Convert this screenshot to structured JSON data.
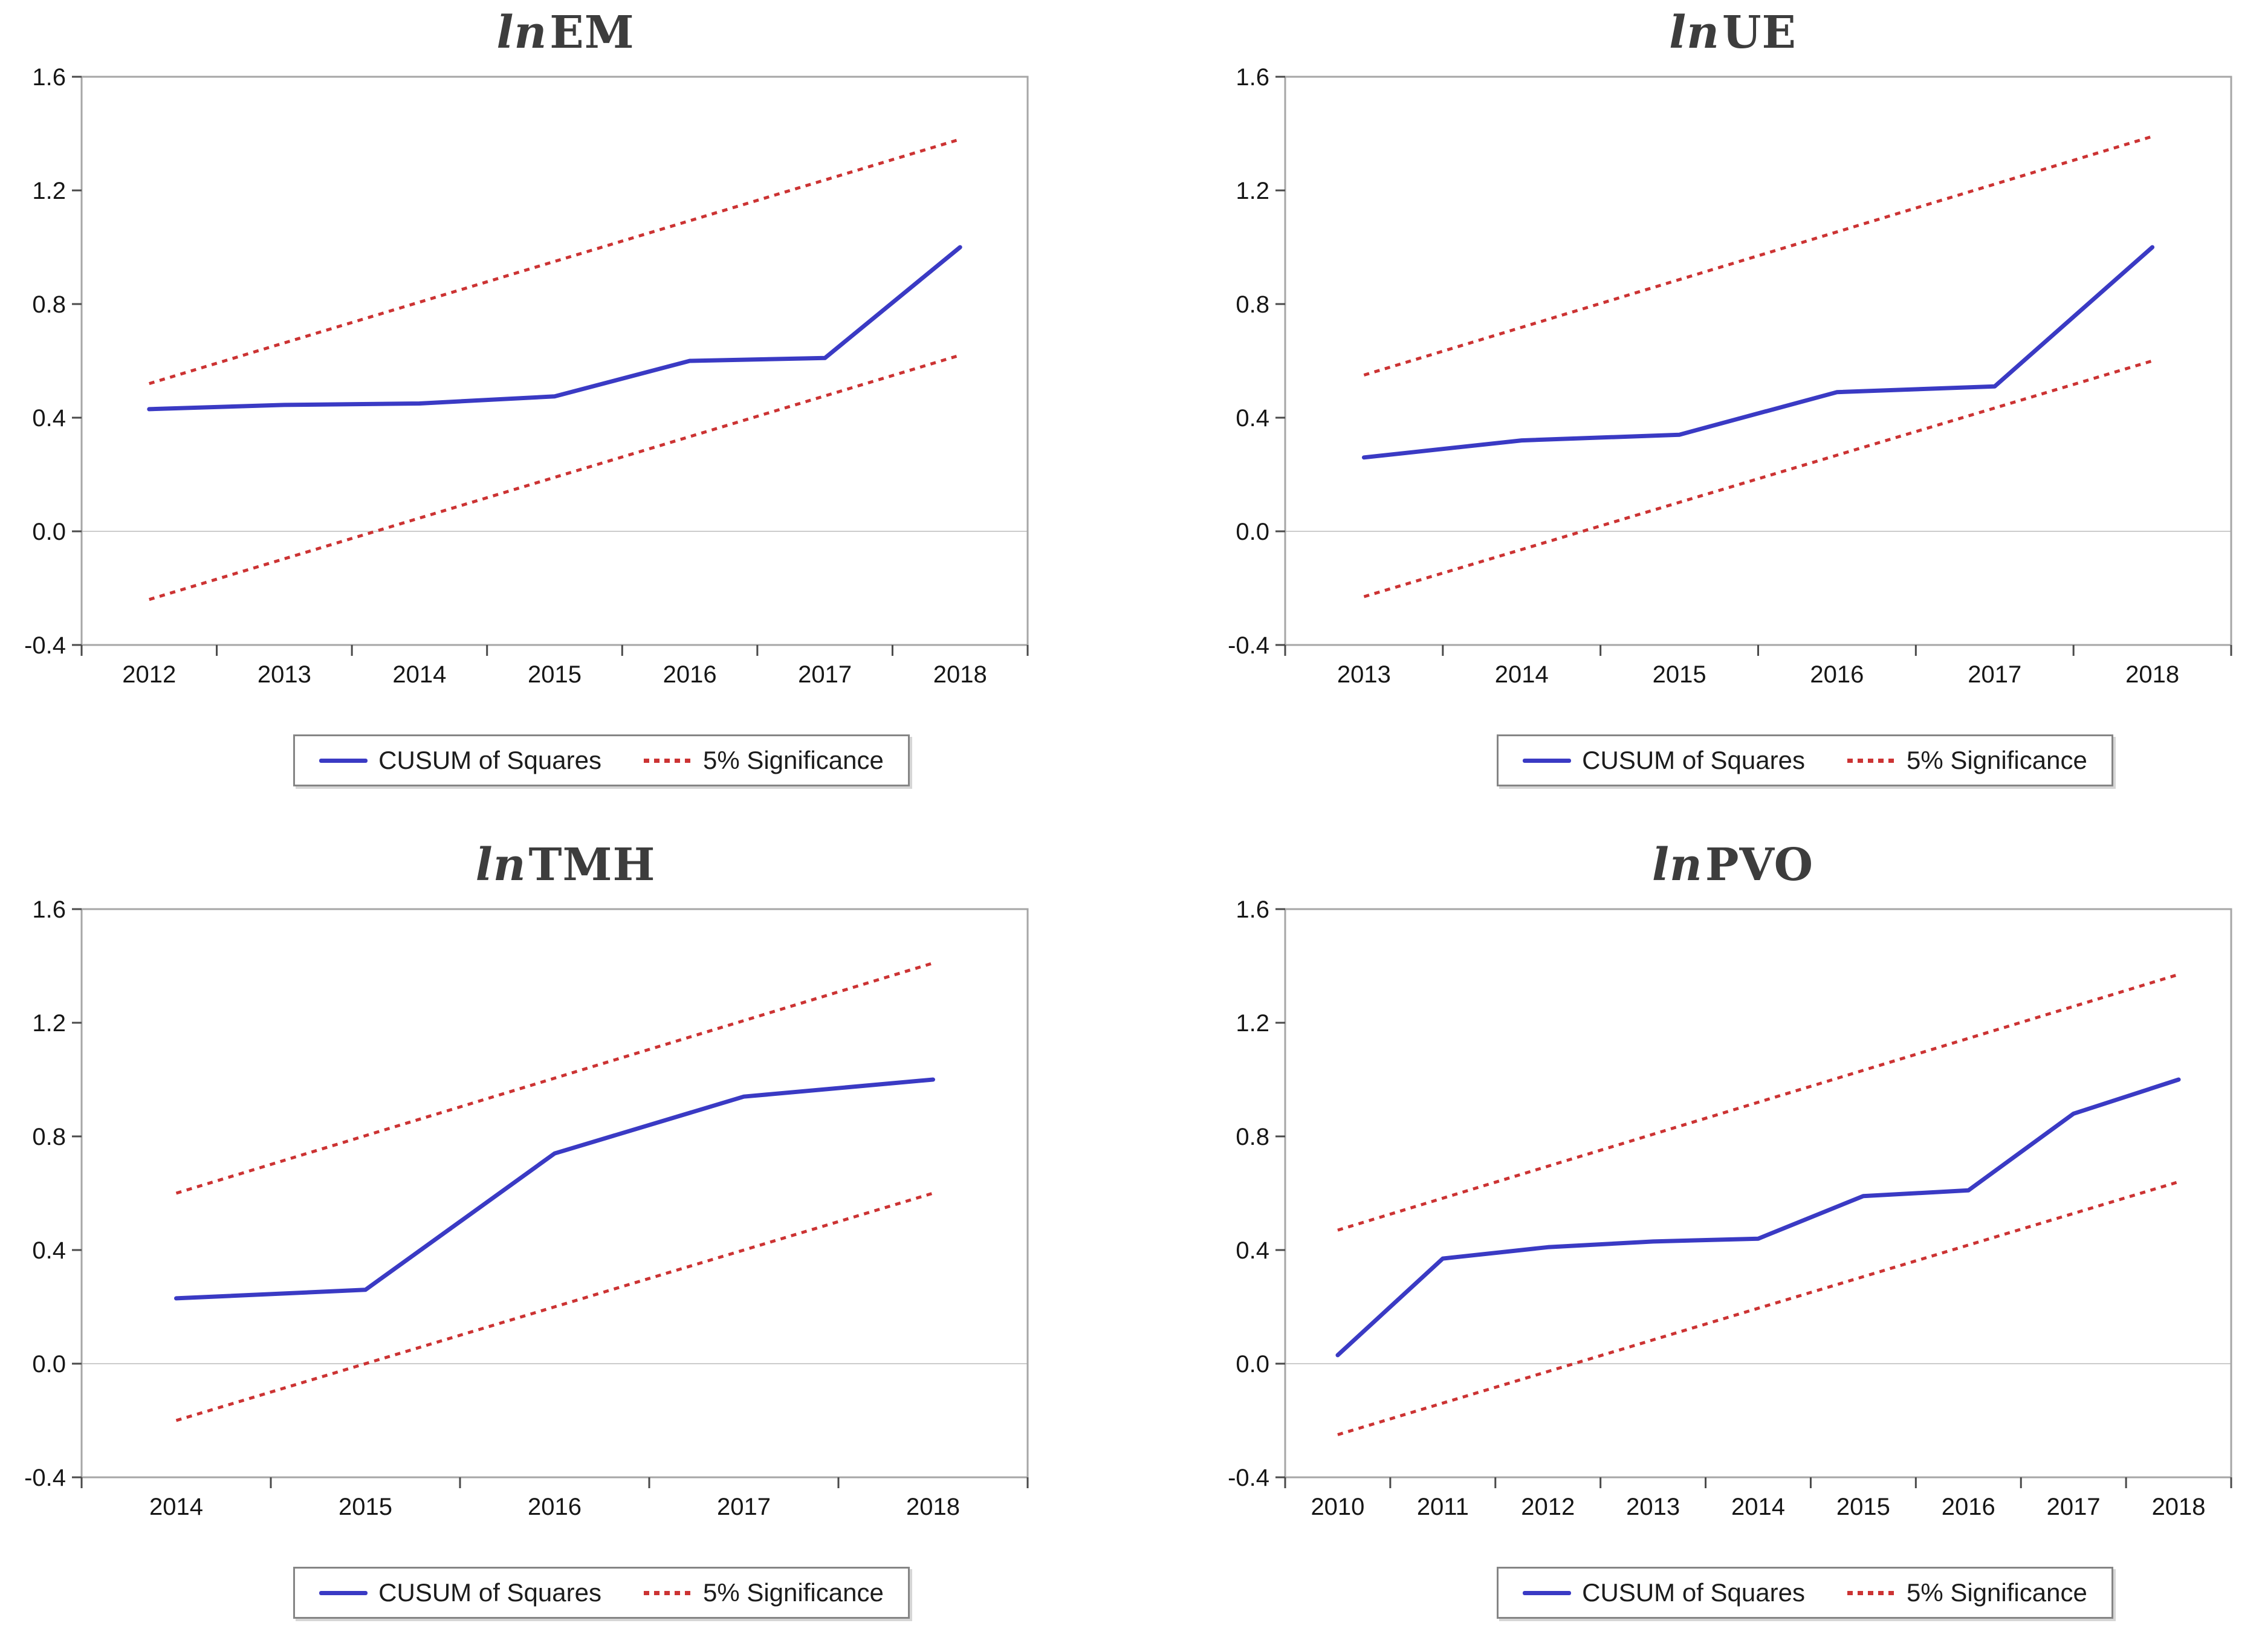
{
  "style": {
    "background": "#ffffff",
    "cusum_line": "#3a3ac4",
    "significance_line": "#cc3333",
    "frame": "#a6a6a6",
    "zero_line": "#cccccc",
    "tick": "#4a4a4a",
    "title_color": "#3d3d3d",
    "label_color": "#161616"
  },
  "legend": {
    "cusum_label": "CUSUM of Squares",
    "significance_label": "5% Significance"
  },
  "y_axis": {
    "min": -0.4,
    "max": 1.6,
    "ticks": [
      1.6,
      1.2,
      0.8,
      0.4,
      0.0,
      -0.4
    ],
    "tick_labels": [
      "1.6",
      "1.2",
      "0.8",
      "0.4",
      "0.0",
      "-0.4"
    ]
  },
  "chart_data": [
    {
      "type": "line",
      "title_prefix": "ln",
      "title_main": "EM",
      "ylim": [
        -0.4,
        1.6
      ],
      "grid": "zero-line-only",
      "legend_position": "bottom-center",
      "years": [
        2012,
        2013,
        2014,
        2015,
        2016,
        2017,
        2018
      ],
      "series": [
        {
          "name": "CUSUM of Squares",
          "role": "cusum",
          "values": [
            0.43,
            0.445,
            0.45,
            0.475,
            0.6,
            0.61,
            1.0
          ]
        },
        {
          "name": "5% Significance",
          "role": "significance-upper",
          "values": [
            0.52,
            1.38
          ]
        },
        {
          "name": "5% Significance",
          "role": "significance-lower",
          "values": [
            -0.24,
            0.62
          ]
        }
      ]
    },
    {
      "type": "line",
      "title_prefix": "ln",
      "title_main": "UE",
      "ylim": [
        -0.4,
        1.6
      ],
      "grid": "zero-line-only",
      "legend_position": "bottom-center",
      "years": [
        2013,
        2014,
        2015,
        2016,
        2017,
        2018
      ],
      "series": [
        {
          "name": "CUSUM of Squares",
          "role": "cusum",
          "values": [
            0.26,
            0.32,
            0.34,
            0.49,
            0.51,
            1.0
          ]
        },
        {
          "name": "5% Significance",
          "role": "significance-upper",
          "values": [
            0.55,
            1.39
          ]
        },
        {
          "name": "5% Significance",
          "role": "significance-lower",
          "values": [
            -0.23,
            0.6
          ]
        }
      ]
    },
    {
      "type": "line",
      "title_prefix": "ln",
      "title_main": "TMH",
      "ylim": [
        -0.4,
        1.6
      ],
      "grid": "zero-line-only",
      "legend_position": "bottom-center",
      "years": [
        2014,
        2015,
        2016,
        2017,
        2018
      ],
      "series": [
        {
          "name": "CUSUM of Squares",
          "role": "cusum",
          "values": [
            0.23,
            0.26,
            0.74,
            0.94,
            1.0
          ]
        },
        {
          "name": "5% Significance",
          "role": "significance-upper",
          "values": [
            0.6,
            1.41
          ]
        },
        {
          "name": "5% Significance",
          "role": "significance-lower",
          "values": [
            -0.2,
            0.6
          ]
        }
      ]
    },
    {
      "type": "line",
      "title_prefix": "ln",
      "title_main": "PVO",
      "ylim": [
        -0.4,
        1.6
      ],
      "grid": "zero-line-only",
      "legend_position": "bottom-center",
      "years": [
        2010,
        2011,
        2012,
        2013,
        2014,
        2015,
        2016,
        2017,
        2018
      ],
      "series": [
        {
          "name": "CUSUM of Squares",
          "role": "cusum",
          "values": [
            0.03,
            0.37,
            0.41,
            0.43,
            0.44,
            0.59,
            0.61,
            0.88,
            1.0
          ]
        },
        {
          "name": "5% Significance",
          "role": "significance-upper",
          "values": [
            0.47,
            1.37
          ]
        },
        {
          "name": "5% Significance",
          "role": "significance-lower",
          "values": [
            -0.25,
            0.64
          ]
        }
      ]
    }
  ]
}
